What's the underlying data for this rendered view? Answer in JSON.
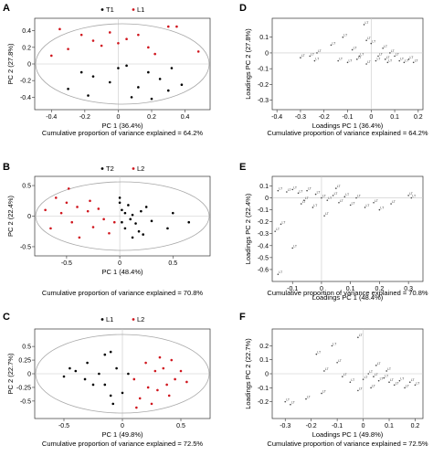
{
  "colors": {
    "series_black": "#000000",
    "series_red": "#d0161e",
    "ellipse": "#a8a8a8",
    "axis": "#333333",
    "zero_line": "#c8c8c8",
    "loading_text": "#444444"
  },
  "figure_caption_prefix": "Cumulative proportion of variance explained = ",
  "chart_data": [
    {
      "panel": "A",
      "type": "scatter",
      "xlabel": "PC 1 (36.4%)",
      "ylabel": "PC 2 (27.8%)",
      "xlim": [
        -0.5,
        0.55
      ],
      "ylim": [
        -0.55,
        0.55
      ],
      "xticks": [
        "-0.4",
        "-0.2",
        "0",
        "0.2",
        "0.4"
      ],
      "xtick_values": [
        -0.4,
        -0.2,
        0,
        0.2,
        0.4
      ],
      "yticks": [
        "0.4",
        "0.2",
        "0",
        "-0.2",
        "-0.4"
      ],
      "ytick_values": [
        0.4,
        0.2,
        0,
        -0.2,
        -0.4
      ],
      "caption": "Cumulative proportion of variance explained = 64.2%",
      "legend": [
        "T1",
        "L1"
      ],
      "series": [
        {
          "name": "T1",
          "color": "black",
          "points": [
            [
              -0.3,
              -0.3
            ],
            [
              -0.22,
              -0.1
            ],
            [
              -0.15,
              -0.15
            ],
            [
              -0.05,
              -0.22
            ],
            [
              0.0,
              -0.05
            ],
            [
              0.05,
              -0.02
            ],
            [
              0.12,
              -0.28
            ],
            [
              0.18,
              -0.1
            ],
            [
              0.25,
              -0.18
            ],
            [
              0.3,
              -0.32
            ],
            [
              0.32,
              -0.05
            ],
            [
              0.38,
              -0.25
            ],
            [
              -0.18,
              -0.38
            ],
            [
              0.08,
              -0.4
            ],
            [
              0.2,
              -0.42
            ]
          ]
        },
        {
          "name": "L1",
          "color": "red",
          "points": [
            [
              -0.35,
              0.42
            ],
            [
              -0.3,
              0.18
            ],
            [
              -0.22,
              0.35
            ],
            [
              -0.15,
              0.28
            ],
            [
              -0.1,
              0.22
            ],
            [
              -0.05,
              0.38
            ],
            [
              0.0,
              0.25
            ],
            [
              0.05,
              0.3
            ],
            [
              0.12,
              0.35
            ],
            [
              0.18,
              0.2
            ],
            [
              0.22,
              0.12
            ],
            [
              0.3,
              0.45
            ],
            [
              0.35,
              0.45
            ],
            [
              0.48,
              0.15
            ],
            [
              -0.4,
              0.1
            ]
          ]
        }
      ]
    },
    {
      "panel": "B",
      "type": "scatter",
      "xlabel": "PC 1 (48.4%)",
      "ylabel": "PC 2 (22.4%)",
      "xlim": [
        -0.8,
        0.85
      ],
      "ylim": [
        -0.65,
        0.65
      ],
      "xticks": [
        "-0.5",
        "0",
        "0.5"
      ],
      "xtick_values": [
        -0.5,
        0,
        0.5
      ],
      "yticks": [
        "0.5",
        "0",
        "-0.5"
      ],
      "ytick_values": [
        0.5,
        0,
        -0.5
      ],
      "caption": "Cumulative proportion of variance explained = 70.8%",
      "legend": [
        "T2",
        "L2"
      ],
      "series": [
        {
          "name": "T2",
          "color": "black",
          "points": [
            [
              0.0,
              0.22
            ],
            [
              0.02,
              0.1
            ],
            [
              0.05,
              0.05
            ],
            [
              0.08,
              0.18
            ],
            [
              0.1,
              -0.05
            ],
            [
              0.12,
              0.02
            ],
            [
              0.15,
              -0.12
            ],
            [
              0.05,
              -0.2
            ],
            [
              0.02,
              -0.1
            ],
            [
              0.18,
              -0.25
            ],
            [
              0.2,
              0.08
            ],
            [
              0.22,
              -0.3
            ],
            [
              0.3,
              -0.08
            ],
            [
              0.45,
              -0.2
            ],
            [
              0.5,
              0.05
            ],
            [
              0.65,
              -0.1
            ],
            [
              0.12,
              -0.35
            ],
            [
              0.0,
              0.3
            ],
            [
              0.25,
              0.15
            ]
          ]
        },
        {
          "name": "L2",
          "color": "red",
          "points": [
            [
              -0.6,
              0.3
            ],
            [
              -0.55,
              0.05
            ],
            [
              -0.5,
              0.22
            ],
            [
              -0.45,
              -0.1
            ],
            [
              -0.4,
              0.15
            ],
            [
              -0.38,
              -0.35
            ],
            [
              -0.3,
              0.08
            ],
            [
              -0.28,
              0.25
            ],
            [
              -0.25,
              -0.18
            ],
            [
              -0.2,
              0.12
            ],
            [
              -0.15,
              -0.05
            ],
            [
              -0.1,
              -0.28
            ],
            [
              -0.05,
              -0.1
            ],
            [
              -0.65,
              -0.2
            ],
            [
              -0.48,
              0.45
            ],
            [
              -0.7,
              0.1
            ]
          ]
        }
      ]
    },
    {
      "panel": "C",
      "type": "scatter",
      "xlabel": "PC 1 (49.8%)",
      "ylabel": "PC 2 (22.7%)",
      "xlim": [
        -0.75,
        0.75
      ],
      "ylim": [
        -0.82,
        0.82
      ],
      "xticks": [
        "-0.5",
        "0",
        "0.5"
      ],
      "xtick_values": [
        -0.5,
        0,
        0.5
      ],
      "yticks": [
        "0.5",
        "0.25",
        "0",
        "-0.25",
        "-0.5"
      ],
      "ytick_values": [
        0.5,
        0.25,
        0,
        -0.25,
        -0.5
      ],
      "caption": "Cumulative proportion of variance explained = 72.5%",
      "legend": [
        "L1",
        "L2"
      ],
      "series": [
        {
          "name": "L1",
          "color": "black",
          "points": [
            [
              -0.45,
              0.1
            ],
            [
              -0.4,
              0.05
            ],
            [
              -0.32,
              -0.1
            ],
            [
              -0.3,
              0.2
            ],
            [
              -0.25,
              -0.2
            ],
            [
              -0.2,
              0.0
            ],
            [
              -0.15,
              0.35
            ],
            [
              -0.1,
              0.4
            ],
            [
              -0.05,
              0.1
            ],
            [
              -0.1,
              -0.4
            ],
            [
              -0.08,
              -0.55
            ],
            [
              0.0,
              -0.35
            ],
            [
              0.05,
              0.0
            ],
            [
              -0.5,
              -0.05
            ],
            [
              -0.15,
              -0.2
            ]
          ]
        },
        {
          "name": "L2",
          "color": "red",
          "points": [
            [
              0.1,
              -0.1
            ],
            [
              0.15,
              -0.45
            ],
            [
              0.2,
              0.2
            ],
            [
              0.22,
              -0.25
            ],
            [
              0.28,
              0.05
            ],
            [
              0.3,
              -0.3
            ],
            [
              0.35,
              0.1
            ],
            [
              0.38,
              -0.2
            ],
            [
              0.42,
              0.25
            ],
            [
              0.45,
              -0.1
            ],
            [
              0.5,
              0.05
            ],
            [
              0.55,
              -0.15
            ],
            [
              0.4,
              -0.4
            ],
            [
              0.25,
              -0.55
            ],
            [
              0.12,
              -0.62
            ],
            [
              0.32,
              0.3
            ]
          ]
        }
      ]
    },
    {
      "panel": "D",
      "type": "scatter",
      "xlabel": "Loadings PC 1 (36.4%)",
      "ylabel": "Loadings PC 2 (27.8%)",
      "xlim": [
        -0.42,
        0.22
      ],
      "ylim": [
        -0.36,
        0.22
      ],
      "xticks": [
        "-0.4",
        "-0.3",
        "-0.2",
        "-0.1",
        "0",
        "0.1",
        "0.2"
      ],
      "xtick_values": [
        -0.4,
        -0.3,
        -0.2,
        -0.1,
        0,
        0.1,
        0.2
      ],
      "yticks": [
        "0.1",
        "0",
        "-0.1",
        "-0.2",
        "-0.3"
      ],
      "ytick_values": [
        0.1,
        0,
        -0.1,
        -0.2,
        -0.3
      ],
      "caption": "Cumulative proportion of variance explained = 64.2%",
      "point_label": "LT",
      "loading_points": [
        [
          -0.03,
          0.18
        ],
        [
          -0.12,
          0.1
        ],
        [
          -0.17,
          0.05
        ],
        [
          -0.23,
          0.0
        ],
        [
          -0.26,
          -0.02
        ],
        [
          -0.3,
          -0.03
        ],
        [
          -0.24,
          -0.05
        ],
        [
          -0.02,
          0.08
        ],
        [
          0.0,
          0.06
        ],
        [
          -0.05,
          -0.02
        ],
        [
          -0.08,
          0.02
        ],
        [
          0.02,
          -0.05
        ],
        [
          0.05,
          0.03
        ],
        [
          0.08,
          0.0
        ],
        [
          0.1,
          -0.02
        ],
        [
          0.12,
          -0.05
        ],
        [
          0.14,
          -0.06
        ],
        [
          0.16,
          -0.04
        ],
        [
          0.18,
          -0.06
        ],
        [
          0.06,
          -0.04
        ],
        [
          -0.1,
          -0.06
        ],
        [
          -0.14,
          -0.05
        ],
        [
          -0.02,
          -0.07
        ],
        [
          0.03,
          -0.02
        ],
        [
          0.07,
          -0.06
        ],
        [
          -0.06,
          -0.04
        ]
      ]
    },
    {
      "panel": "E",
      "type": "scatter",
      "xlabel": "Loadings PC 1 (48.4%)",
      "ylabel": "Loadings PC 2 (22.4%)",
      "xlim": [
        -0.17,
        0.35
      ],
      "ylim": [
        -0.7,
        0.18
      ],
      "xticks": [
        "-0.1",
        "0",
        "0.1",
        "0.2",
        "0.3"
      ],
      "xtick_values": [
        -0.1,
        0,
        0.1,
        0.2,
        0.3
      ],
      "yticks": [
        "0.1",
        "0",
        "-0.1",
        "-0.2",
        "-0.3",
        "-0.4",
        "-0.5",
        "-0.6"
      ],
      "ytick_values": [
        0.1,
        0,
        -0.1,
        -0.2,
        -0.3,
        -0.4,
        -0.5,
        -0.6
      ],
      "caption": "Cumulative proportion of variance explained = 70.8%",
      "point_label": "LT",
      "loading_points": [
        [
          -0.15,
          0.06
        ],
        [
          -0.12,
          0.05
        ],
        [
          -0.1,
          0.07
        ],
        [
          -0.08,
          0.04
        ],
        [
          -0.05,
          0.06
        ],
        [
          -0.02,
          0.03
        ],
        [
          0.0,
          0.0
        ],
        [
          0.02,
          -0.02
        ],
        [
          0.04,
          0.02
        ],
        [
          0.06,
          -0.04
        ],
        [
          0.08,
          0.01
        ],
        [
          0.1,
          -0.06
        ],
        [
          0.12,
          0.0
        ],
        [
          0.15,
          -0.08
        ],
        [
          0.18,
          -0.04
        ],
        [
          0.2,
          -0.1
        ],
        [
          0.24,
          -0.05
        ],
        [
          0.3,
          0.02
        ],
        [
          0.31,
          0.0
        ],
        [
          -0.03,
          -0.08
        ],
        [
          0.01,
          -0.15
        ],
        [
          -0.06,
          -0.02
        ],
        [
          -0.14,
          -0.22
        ],
        [
          -0.16,
          -0.28
        ],
        [
          -0.1,
          -0.42
        ],
        [
          -0.15,
          -0.64
        ],
        [
          0.05,
          0.08
        ],
        [
          -0.07,
          -0.05
        ]
      ]
    },
    {
      "panel": "F",
      "type": "scatter",
      "xlabel": "Loadings PC 1 (49.8%)",
      "ylabel": "Loadings PC 2 (22.7%)",
      "xlim": [
        -0.35,
        0.23
      ],
      "ylim": [
        -0.32,
        0.32
      ],
      "xticks": [
        "-0.3",
        "-0.2",
        "-0.1",
        "0",
        "0.1",
        "0.2"
      ],
      "xtick_values": [
        -0.3,
        -0.2,
        -0.1,
        0,
        0.1,
        0.2
      ],
      "yticks": [
        "0.2",
        "0.1",
        "0",
        "-0.1",
        "-0.2"
      ],
      "ytick_values": [
        0.2,
        0.1,
        0,
        -0.1,
        -0.2
      ],
      "caption": "Cumulative proportion of variance explained = 72.5%",
      "point_label": "LT",
      "loading_points": [
        [
          -0.02,
          0.26
        ],
        [
          -0.12,
          0.2
        ],
        [
          -0.18,
          0.14
        ],
        [
          -0.1,
          0.08
        ],
        [
          -0.15,
          0.02
        ],
        [
          -0.08,
          -0.02
        ],
        [
          -0.05,
          -0.06
        ],
        [
          0.0,
          -0.04
        ],
        [
          0.02,
          0.0
        ],
        [
          0.04,
          -0.02
        ],
        [
          0.06,
          -0.05
        ],
        [
          0.08,
          -0.03
        ],
        [
          0.1,
          -0.06
        ],
        [
          0.12,
          -0.08
        ],
        [
          0.14,
          -0.05
        ],
        [
          0.16,
          -0.1
        ],
        [
          0.18,
          -0.06
        ],
        [
          0.2,
          -0.08
        ],
        [
          0.05,
          0.06
        ],
        [
          -0.3,
          -0.2
        ],
        [
          -0.28,
          -0.22
        ],
        [
          -0.22,
          -0.18
        ],
        [
          -0.16,
          -0.14
        ],
        [
          0.03,
          -0.1
        ],
        [
          -0.02,
          -0.12
        ],
        [
          0.09,
          0.02
        ]
      ]
    }
  ]
}
